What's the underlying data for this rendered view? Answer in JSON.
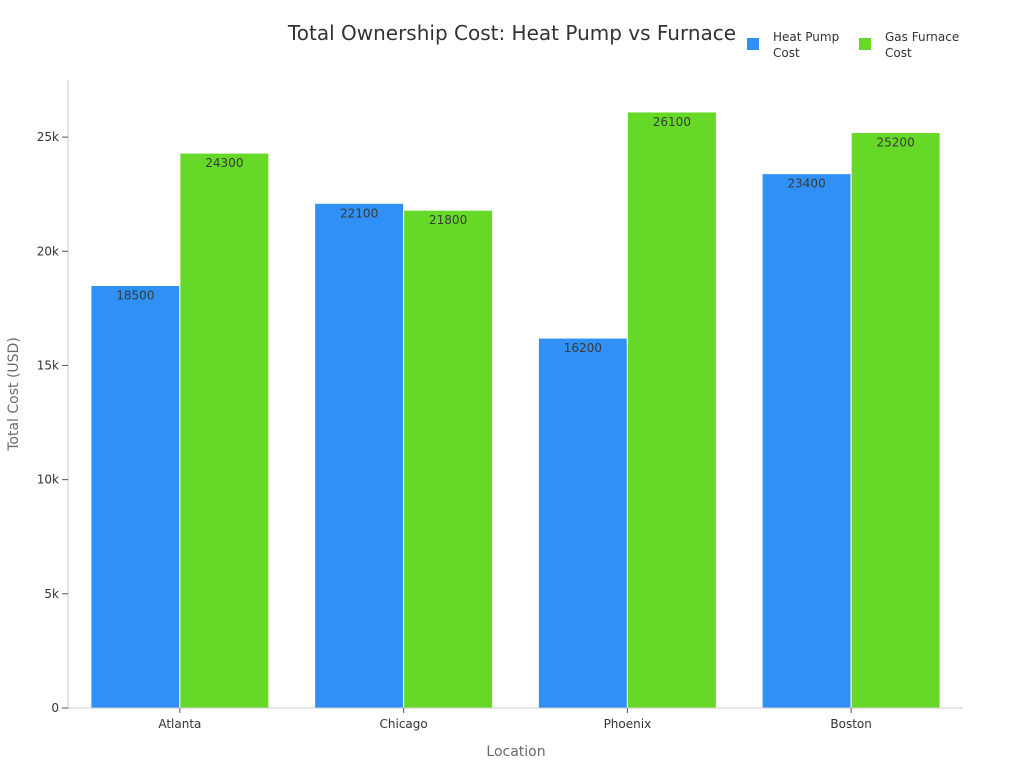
{
  "chart_data": {
    "type": "bar",
    "title": "Total Ownership Cost: Heat Pump vs Furnace",
    "xlabel": "Location",
    "ylabel": "Total Cost (USD)",
    "categories": [
      "Atlanta",
      "Chicago",
      "Phoenix",
      "Boston"
    ],
    "series": [
      {
        "name": "Heat Pump Cost",
        "legend_lines": [
          "Heat Pump",
          "Cost"
        ],
        "color": "#2f91f5",
        "values": [
          18500,
          22100,
          16200,
          23400
        ]
      },
      {
        "name": "Gas Furnace Cost",
        "legend_lines": [
          "Gas Furnace",
          "Cost"
        ],
        "color": "#66d928",
        "values": [
          24300,
          21800,
          26100,
          25200
        ]
      }
    ],
    "ylim": [
      0,
      27500
    ],
    "yticks": [
      0,
      5000,
      10000,
      15000,
      20000,
      25000
    ],
    "ytick_labels": [
      "0",
      "5k",
      "10k",
      "15k",
      "20k",
      "25k"
    ],
    "grid": false,
    "legend_position": "top-right",
    "data_labels": true
  }
}
